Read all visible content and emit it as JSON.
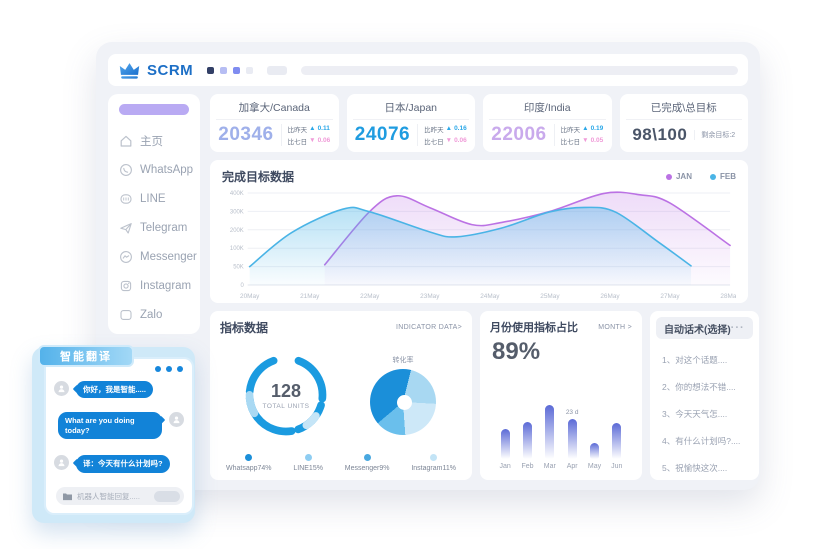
{
  "header": {
    "brand": "SCRM",
    "squares": [
      "#323f66",
      "#b6bdf3",
      "#7f8cf0",
      "#e9ebf3"
    ]
  },
  "sidebar": {
    "items": [
      {
        "label": "主页"
      },
      {
        "label": "WhatsApp"
      },
      {
        "label": "LINE"
      },
      {
        "label": "Telegram"
      },
      {
        "label": "Messenger"
      },
      {
        "label": "Instagram"
      },
      {
        "label": "Zalo"
      }
    ]
  },
  "stat_cards": [
    {
      "title": "加拿大/Canada",
      "value": "20346",
      "value_color": "#9fb0ea",
      "rows": [
        {
          "label": "比昨天",
          "arrow": "▲",
          "value": "0.11"
        },
        {
          "label": "比七日",
          "arrow": "▼",
          "value": "0.06"
        }
      ]
    },
    {
      "title": "日本/Japan",
      "value": "24076",
      "value_color": "#1f9ce0",
      "rows": [
        {
          "label": "比昨天",
          "arrow": "▲",
          "value": "0.16"
        },
        {
          "label": "比七日",
          "arrow": "▼",
          "value": "0.06"
        }
      ]
    },
    {
      "title": "印度/India",
      "value": "22006",
      "value_color": "#c9aaec",
      "rows": [
        {
          "label": "比昨天",
          "arrow": "▲",
          "value": "0.19"
        },
        {
          "label": "比七日",
          "arrow": "▼",
          "value": "0.05"
        }
      ]
    },
    {
      "title": "已完成\\总目标",
      "value": "98\\100",
      "value_color": "#4a5568",
      "note": "剩余目标:2"
    }
  ],
  "chart_data": [
    {
      "id": "goal-area",
      "type": "area",
      "title": "完成目标数据",
      "categories": [
        "20May",
        "21May",
        "22May",
        "23May",
        "24May",
        "25May",
        "26May",
        "27May",
        "28May"
      ],
      "yticks": [
        "400K",
        "300K",
        "200K",
        "100K",
        "50K",
        "0"
      ],
      "ylim": [
        0,
        400
      ],
      "unit": "K",
      "grid": true,
      "legend_position": "top-right",
      "series": [
        {
          "name": "JAN",
          "color": "#bb72e4",
          "points": [
            [
              1.25,
              55
            ],
            [
              2,
              300
            ],
            [
              2.45,
              385
            ],
            [
              3,
              320
            ],
            [
              3.7,
              228
            ],
            [
              4.2,
              240
            ],
            [
              5,
              300
            ],
            [
              5.9,
              398
            ],
            [
              6.5,
              390
            ],
            [
              7,
              345
            ],
            [
              8,
              115
            ]
          ]
        },
        {
          "name": "FEB",
          "color": "#4ab4e6",
          "points": [
            [
              0,
              50
            ],
            [
              0.7,
              185
            ],
            [
              1.55,
              312
            ],
            [
              2,
              298
            ],
            [
              3,
              188
            ],
            [
              3.45,
              162
            ],
            [
              4.2,
              210
            ],
            [
              5,
              298
            ],
            [
              5.6,
              322
            ],
            [
              6.1,
              295
            ],
            [
              6.8,
              135
            ],
            [
              7.35,
              52
            ]
          ]
        }
      ]
    },
    {
      "id": "indicator-donut",
      "type": "donut",
      "panel_title": "指标数据",
      "panel_link": "INDICATOR DATA>",
      "center_value": "128",
      "center_label": "TOTAL UNITS",
      "legend": [
        {
          "name": "Whatsapp74%",
          "color": "#1b8fd9"
        },
        {
          "name": "LINE15%",
          "color": "#8ecdf2"
        },
        {
          "name": "Messenger9%",
          "color": "#49a8e0"
        },
        {
          "name": "Instagram11%",
          "color": "#c3e4f6"
        }
      ]
    },
    {
      "id": "channel-pie",
      "type": "pie",
      "label": "转化率",
      "slices": [
        {
          "name": "slice-1",
          "value": 40,
          "color": "#1b8fd9"
        },
        {
          "name": "slice-2",
          "value": 22,
          "color": "#a8d8f2"
        },
        {
          "name": "slice-3",
          "value": 23,
          "color": "#cde8f8"
        },
        {
          "name": "slice-4",
          "value": 15,
          "color": "#6abfec"
        }
      ]
    },
    {
      "id": "month-bars",
      "type": "bar",
      "title": "月份使用指标占比",
      "link": "MONTH >",
      "headline": "89%",
      "categories": [
        "Jan",
        "Feb",
        "Mar",
        "Apr",
        "May",
        "Jun"
      ],
      "values": [
        42,
        52,
        75,
        55,
        22,
        50
      ],
      "ylim": [
        0,
        100
      ],
      "annotation": {
        "index": 3,
        "text": "23 d"
      }
    }
  ],
  "auto_scripts": {
    "title": "自动话术(选择)",
    "menu": "···",
    "items": [
      "1、对这个话题....",
      "2、你的想法不错....",
      "3、今天天气怎....",
      "4、有什么计划吗?....",
      "5、祝愉快这次...."
    ]
  },
  "chat": {
    "title": "智能翻译",
    "messages": [
      {
        "side": "left",
        "text": "你好，我是智能....."
      },
      {
        "side": "right",
        "text": "What are you doing today?"
      },
      {
        "side": "left",
        "text": "译：今天有什么计划吗?"
      }
    ],
    "input_placeholder": "机器人智能回复....."
  }
}
